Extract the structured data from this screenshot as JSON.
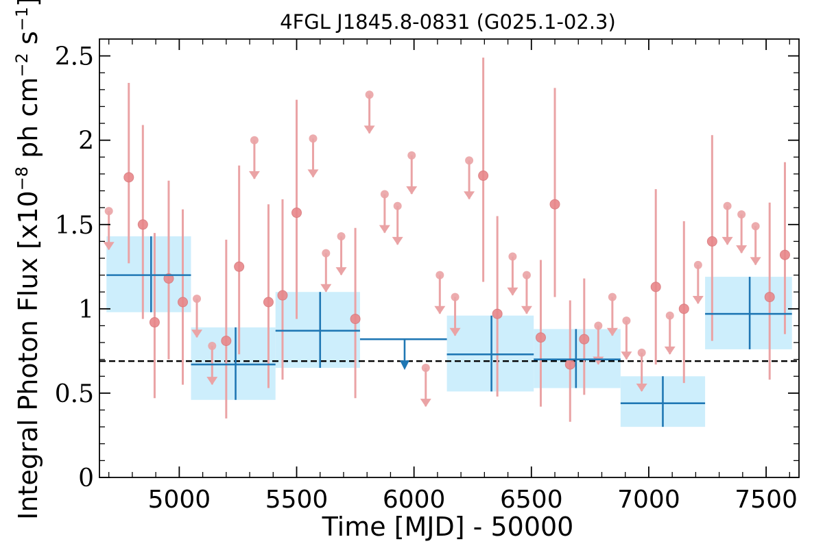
{
  "chart_data": {
    "type": "scatter",
    "title": "4FGL J1845.8-0831 (G025.1-02.3)",
    "xlabel": "Time [MJD] - 50000",
    "ylabel_main": "Integral Photon Flux [x10",
    "ylabel_exp1": "−8",
    "ylabel_mid": " ph cm",
    "ylabel_exp2": "−2",
    "ylabel_end": " s",
    "ylabel_exp3": "−1",
    "ylabel_close": "]",
    "xlim": [
      4660,
      7640
    ],
    "ylim": [
      0,
      2.6
    ],
    "xticks": [
      5000,
      5500,
      6000,
      6500,
      7000,
      7500
    ],
    "xtick_labels": [
      "5000",
      "5500",
      "6000",
      "6500",
      "7000",
      "7500"
    ],
    "yticks": [
      0,
      0.5,
      1,
      1.5,
      2,
      2.5
    ],
    "ytick_labels": [
      "0",
      "0.5",
      "1",
      "1.5",
      "2",
      "2.5"
    ],
    "reference_line": 0.69,
    "colors": {
      "fine_marker": "#e8878a",
      "fine_line": "#eaa3a5",
      "coarse": "#1f77b4",
      "band": "#cdeefc",
      "reference": "#000000"
    },
    "fine_bins": [
      {
        "x": 4700,
        "y": 1.58,
        "ul": true
      },
      {
        "x": 4785,
        "y": 1.78,
        "lo": 1.27,
        "hi": 2.34
      },
      {
        "x": 4845,
        "y": 1.5,
        "lo": 0.94,
        "hi": 2.09
      },
      {
        "x": 4895,
        "y": 0.92,
        "lo": 0.47,
        "hi": 1.45
      },
      {
        "x": 4955,
        "y": 1.18,
        "lo": 0.7,
        "hi": 1.76
      },
      {
        "x": 5015,
        "y": 1.04,
        "lo": 0.55,
        "hi": 1.59
      },
      {
        "x": 5075,
        "y": 1.06,
        "ul": true
      },
      {
        "x": 5140,
        "y": 0.78,
        "ul": true
      },
      {
        "x": 5200,
        "y": 0.81,
        "lo": 0.35,
        "hi": 1.41
      },
      {
        "x": 5255,
        "y": 1.25,
        "lo": 0.73,
        "hi": 1.85
      },
      {
        "x": 5320,
        "y": 2.0,
        "ul": true
      },
      {
        "x": 5380,
        "y": 1.04,
        "lo": 0.53,
        "hi": 1.62
      },
      {
        "x": 5440,
        "y": 1.08,
        "lo": 0.58,
        "hi": 1.65
      },
      {
        "x": 5500,
        "y": 1.57,
        "lo": 0.94,
        "hi": 2.24
      },
      {
        "x": 5570,
        "y": 2.01,
        "ul": true
      },
      {
        "x": 5625,
        "y": 1.33,
        "ul": true
      },
      {
        "x": 5690,
        "y": 1.43,
        "ul": true
      },
      {
        "x": 5750,
        "y": 0.94,
        "lo": 0.47,
        "hi": 1.48
      },
      {
        "x": 5810,
        "y": 2.27,
        "ul": true
      },
      {
        "x": 5875,
        "y": 1.68,
        "ul": true
      },
      {
        "x": 5930,
        "y": 1.61,
        "ul": true
      },
      {
        "x": 5990,
        "y": 1.91,
        "ul": true
      },
      {
        "x": 6050,
        "y": 0.65,
        "ul": true
      },
      {
        "x": 6110,
        "y": 1.2,
        "ul": true
      },
      {
        "x": 6175,
        "y": 1.07,
        "ul": true
      },
      {
        "x": 6235,
        "y": 1.88,
        "ul": true
      },
      {
        "x": 6295,
        "y": 1.79,
        "lo": 1.16,
        "hi": 2.49
      },
      {
        "x": 6355,
        "y": 0.97,
        "lo": 0.48,
        "hi": 1.55
      },
      {
        "x": 6420,
        "y": 1.31,
        "ul": true
      },
      {
        "x": 6480,
        "y": 1.2,
        "ul": true
      },
      {
        "x": 6540,
        "y": 0.83,
        "lo": 0.42,
        "hi": 1.29
      },
      {
        "x": 6600,
        "y": 1.62,
        "lo": 1.07,
        "hi": 2.31
      },
      {
        "x": 6665,
        "y": 0.67,
        "lo": 0.33,
        "hi": 1.05
      },
      {
        "x": 6725,
        "y": 0.82,
        "lo": 0.49,
        "hi": 1.18
      },
      {
        "x": 6785,
        "y": 0.9,
        "ul": true
      },
      {
        "x": 6845,
        "y": 1.07,
        "ul": true
      },
      {
        "x": 6905,
        "y": 0.93,
        "ul": true
      },
      {
        "x": 6970,
        "y": 0.74,
        "ul": true
      },
      {
        "x": 7030,
        "y": 1.13,
        "lo": 0.67,
        "hi": 1.71
      },
      {
        "x": 7090,
        "y": 0.96,
        "ul": true
      },
      {
        "x": 7150,
        "y": 1.0,
        "lo": 0.56,
        "hi": 1.52
      },
      {
        "x": 7210,
        "y": 1.26,
        "ul": true
      },
      {
        "x": 7270,
        "y": 1.4,
        "lo": 0.81,
        "hi": 2.03
      },
      {
        "x": 7335,
        "y": 1.61,
        "ul": true
      },
      {
        "x": 7395,
        "y": 1.56,
        "ul": true
      },
      {
        "x": 7455,
        "y": 1.49,
        "ul": true
      },
      {
        "x": 7515,
        "y": 1.07,
        "lo": 0.58,
        "hi": 1.63
      },
      {
        "x": 7580,
        "y": 1.32,
        "lo": 0.85,
        "hi": 1.87
      }
    ],
    "coarse_bins": [
      {
        "x0": 4690,
        "x1": 5050,
        "xc": 4880,
        "y": 1.2,
        "lo": 0.98,
        "hi": 1.43
      },
      {
        "x0": 5050,
        "x1": 5410,
        "xc": 5240,
        "y": 0.67,
        "lo": 0.46,
        "hi": 0.89
      },
      {
        "x0": 5410,
        "x1": 5770,
        "xc": 5600,
        "y": 0.87,
        "lo": 0.65,
        "hi": 1.1
      },
      {
        "x0": 5770,
        "x1": 6140,
        "xc": 5960,
        "y": 0.82,
        "ul": true
      },
      {
        "x0": 6140,
        "x1": 6510,
        "xc": 6330,
        "y": 0.73,
        "lo": 0.51,
        "hi": 0.96
      },
      {
        "x0": 6510,
        "x1": 6880,
        "xc": 6690,
        "y": 0.7,
        "lo": 0.53,
        "hi": 0.88
      },
      {
        "x0": 6880,
        "x1": 7240,
        "xc": 7060,
        "y": 0.44,
        "lo": 0.3,
        "hi": 0.6
      },
      {
        "x0": 7240,
        "x1": 7610,
        "xc": 7430,
        "y": 0.97,
        "lo": 0.76,
        "hi": 1.19
      }
    ]
  }
}
